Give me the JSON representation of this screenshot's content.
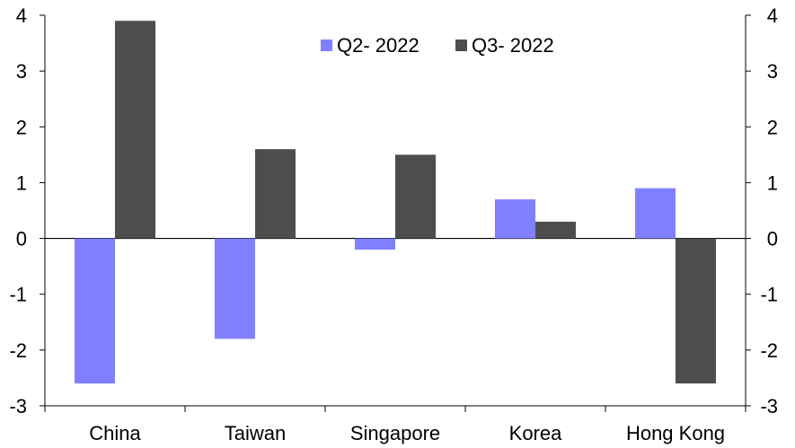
{
  "chart_data": {
    "type": "bar",
    "categories": [
      "China",
      "Taiwan",
      "Singapore",
      "Korea",
      "Hong Kong"
    ],
    "series": [
      {
        "name": "Q2- 2022",
        "color": "#8080ff",
        "values": [
          -2.6,
          -1.8,
          -0.2,
          0.7,
          0.9
        ]
      },
      {
        "name": "Q3- 2022",
        "color": "#4d4d4d",
        "values": [
          3.9,
          1.6,
          1.5,
          0.3,
          -2.6
        ]
      }
    ],
    "ylim": [
      -3,
      4
    ],
    "yticks": [
      4,
      3,
      2,
      1,
      0,
      -1,
      -2,
      -3
    ],
    "y_axes": "left-and-right",
    "legend": "top-center",
    "grid": false
  }
}
